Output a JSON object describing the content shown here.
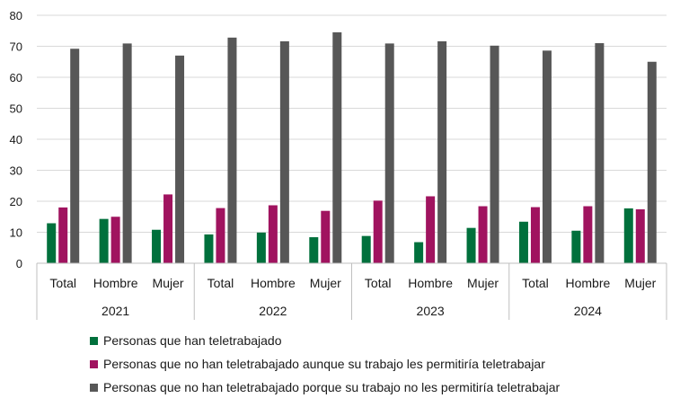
{
  "chart_data": {
    "type": "bar",
    "ylim": [
      0,
      80
    ],
    "yticks": [
      "0",
      "10",
      "20",
      "30",
      "40",
      "50",
      "60",
      "70",
      "80"
    ],
    "grid": true,
    "legend_position": "bottom",
    "groups": [
      {
        "label": "2021",
        "categories": [
          "Total",
          "Hombre",
          "Mujer"
        ]
      },
      {
        "label": "2022",
        "categories": [
          "Total",
          "Hombre",
          "Mujer"
        ]
      },
      {
        "label": "2023",
        "categories": [
          "Total",
          "Hombre",
          "Mujer"
        ]
      },
      {
        "label": "2024",
        "categories": [
          "Total",
          "Hombre",
          "Mujer"
        ]
      }
    ],
    "series": [
      {
        "name": "Personas que han teletrabajado",
        "color": "#00703c",
        "values": [
          12.9,
          14.3,
          10.8,
          9.3,
          9.9,
          8.4,
          8.8,
          6.8,
          11.4,
          13.4,
          10.5,
          17.7
        ]
      },
      {
        "name": "Personas que no han teletrabajado aunque su trabajo les permitiría teletrabajar",
        "color": "#a0135f",
        "values": [
          18.0,
          15.0,
          22.2,
          17.8,
          18.7,
          16.9,
          20.2,
          21.6,
          18.4,
          18.1,
          18.4,
          17.4
        ]
      },
      {
        "name": "Personas que no han teletrabajado porque su trabajo no les permitiría teletrabajar",
        "color": "#575757",
        "values": [
          69.2,
          70.9,
          67.0,
          72.8,
          71.6,
          74.5,
          70.9,
          71.6,
          70.2,
          68.6,
          71.0,
          65.0
        ]
      }
    ]
  }
}
